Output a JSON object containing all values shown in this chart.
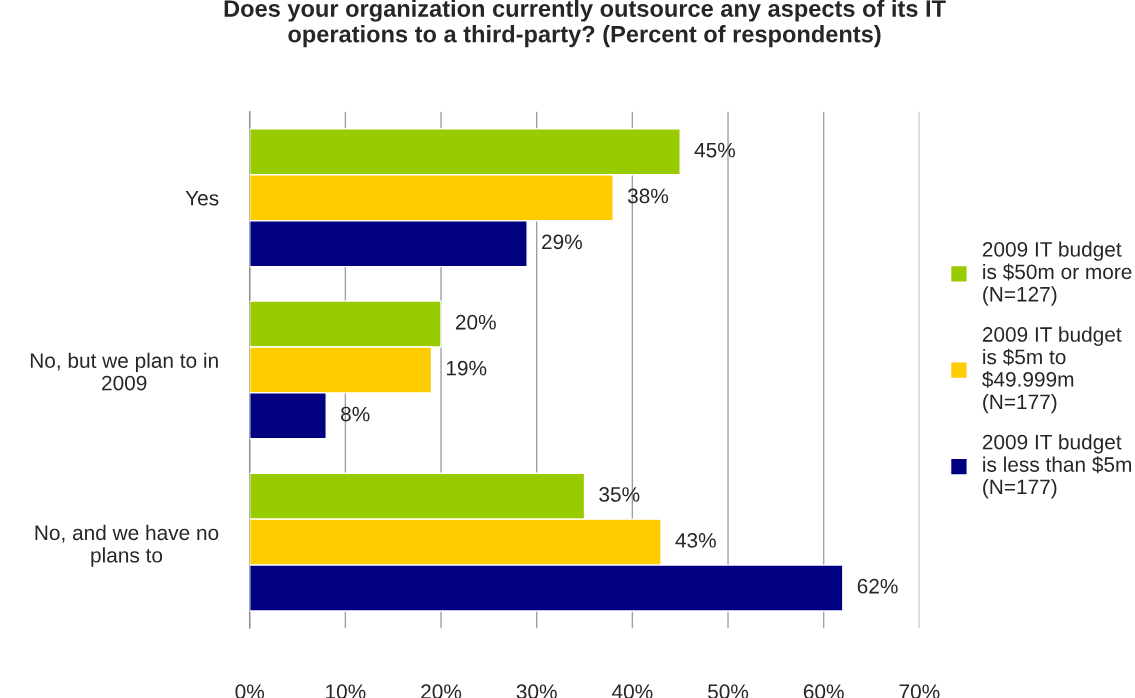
{
  "chart_data": {
    "type": "bar",
    "orientation": "horizontal",
    "title": "Does your organization currently outsource any aspects of its IT\noperations to a third-party? (Percent of respondents)",
    "categories": [
      "Yes",
      "No, but we plan to in\n2009",
      "No, and we have no\nplans to"
    ],
    "series": [
      {
        "name": "2009 IT budget\nis $50m or more\n(N=127)",
        "color": "#99cc00",
        "values": [
          45,
          20,
          35
        ],
        "value_labels": [
          "45%",
          "20%",
          "35%"
        ]
      },
      {
        "name": "2009 IT budget\nis $5m to\n$49.999m\n(N=177)",
        "color": "#ffcc00",
        "values": [
          38,
          19,
          43
        ],
        "value_labels": [
          "38%",
          "19%",
          "43%"
        ]
      },
      {
        "name": "2009 IT budget\nis less than $5m\n(N=177)",
        "color": "#000080",
        "values": [
          29,
          8,
          62
        ],
        "value_labels": [
          "29%",
          "8%",
          "62%"
        ]
      }
    ],
    "xlim": [
      0,
      70
    ],
    "xticks": [
      {
        "value": 0,
        "label": "0%"
      },
      {
        "value": 10,
        "label": "10%"
      },
      {
        "value": 20,
        "label": "20%"
      },
      {
        "value": 30,
        "label": "30%"
      },
      {
        "value": 40,
        "label": "40%"
      },
      {
        "value": 50,
        "label": "50%"
      },
      {
        "value": 60,
        "label": "60%"
      },
      {
        "value": 70,
        "label": "70%"
      }
    ],
    "grid": "x",
    "legend": "right"
  }
}
